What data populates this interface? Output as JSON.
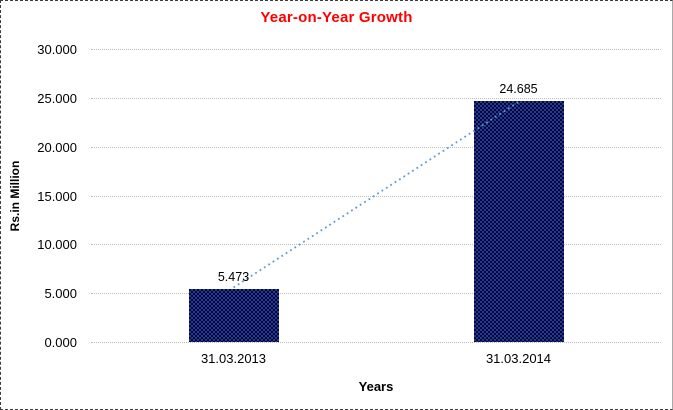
{
  "window": {
    "background": "#FFFFFF",
    "border_style": "dashed-black-picture-border",
    "border_right_color": "#A9A9A9"
  },
  "chart_data": {
    "type": "bar",
    "title": "Year-on-Year Growth",
    "title_color": "#FF0000",
    "xlabel": "Years",
    "ylabel": "Rs.in Million",
    "categories": [
      "31.03.2013",
      "31.03.2014"
    ],
    "values": [
      5.473,
      24.685
    ],
    "data_labels": [
      "5.473",
      "24.685"
    ],
    "ylim": [
      0,
      30
    ],
    "ytick_step": 5,
    "ytick_labels": [
      "0.000",
      "5.000",
      "10.000",
      "15.000",
      "20.000",
      "25.000",
      "30.000"
    ],
    "grid": true,
    "gridline_color": "#BDBDBD",
    "gridline_style": "dotted",
    "legend": "none",
    "text_color": "#000000",
    "bar_pattern_colors": {
      "blue": "#23399F",
      "dark": "#05082A"
    },
    "trendline": {
      "style": "dotted",
      "color": "#5B9BD5",
      "from_value": 5.473,
      "to_value": 24.685
    }
  }
}
